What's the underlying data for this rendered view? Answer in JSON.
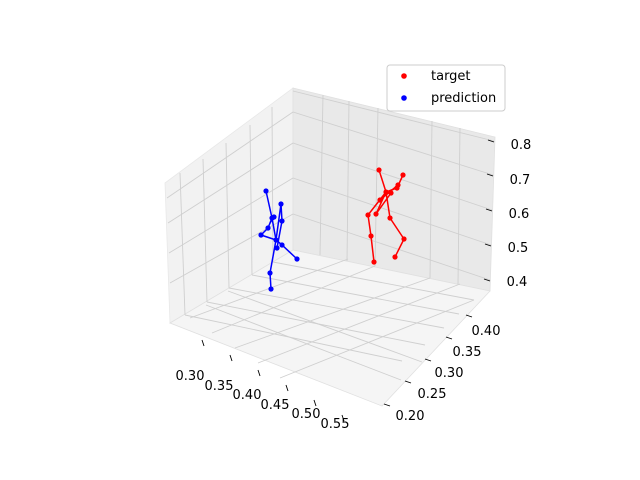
{
  "chart_data": {
    "type": "scatter",
    "projection": "3d",
    "grid": true,
    "legend_position": "top-right",
    "axes": {
      "x": {
        "ticks": [
          "0.30",
          "0.35",
          "0.40",
          "0.45",
          "0.50",
          "0.55"
        ]
      },
      "y": {
        "ticks": [
          "0.20",
          "0.25",
          "0.30",
          "0.35",
          "0.40"
        ]
      },
      "z": {
        "ticks": [
          "0.4",
          "0.5",
          "0.6",
          "0.7",
          "0.8"
        ]
      }
    },
    "series": [
      {
        "name": "target",
        "color": "#ff0000",
        "marker": "circle",
        "connected": true
      },
      {
        "name": "prediction",
        "color": "#0000ff",
        "marker": "circle",
        "connected": true
      }
    ]
  }
}
